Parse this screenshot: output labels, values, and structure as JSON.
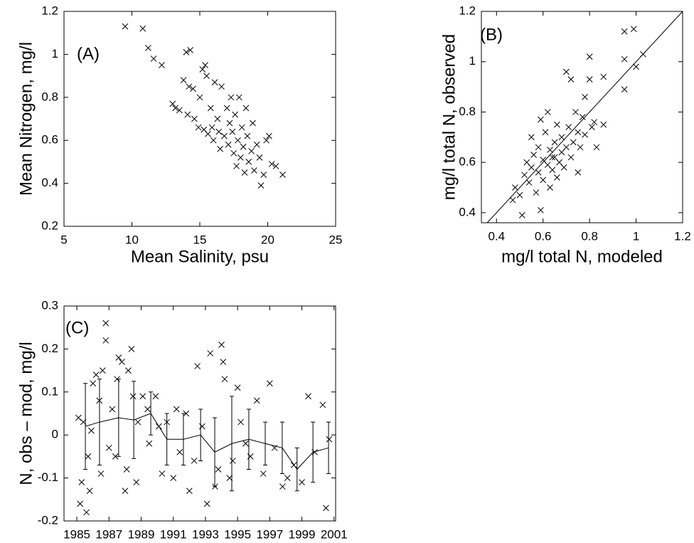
{
  "chart_data": [
    {
      "type": "scatter",
      "annotation": "(A)",
      "xlabel": "Mean Salinity, psu",
      "ylabel": "Mean Nitrogen, mg/l",
      "xlim": [
        5,
        25
      ],
      "xticks": [
        5,
        10,
        15,
        20,
        25
      ],
      "ylim": [
        0.2,
        1.2
      ],
      "yticks": [
        0.2,
        0.4,
        0.6,
        0.8,
        1,
        1.2
      ],
      "series": [
        {
          "marker": "x",
          "color": "#000000",
          "x": [
            9.5,
            10.8,
            11.2,
            11.6,
            12.2,
            13.0,
            13.2,
            13.5,
            13.8,
            14.0,
            14.3,
            14.2,
            14.5,
            14.1,
            14.6,
            14.9,
            15.0,
            15.2,
            15.4,
            15.5,
            15.3,
            15.6,
            15.8,
            16.0,
            16.1,
            16.3,
            16.5,
            16.6,
            16.8,
            17.0,
            17.1,
            17.2,
            17.3,
            17.4,
            17.5,
            17.6,
            17.8,
            17.9,
            18.0,
            18.1,
            18.2,
            18.4,
            18.5,
            18.6,
            18.8,
            18.9,
            19.0,
            19.2,
            19.4,
            19.5,
            19.7,
            19.9,
            20.1,
            20.3,
            20.6,
            21.1,
            16.4,
            17.7,
            15.9,
            18.3
          ],
          "values": [
            1.13,
            1.12,
            1.03,
            0.98,
            0.95,
            0.77,
            0.75,
            0.74,
            0.88,
            1.01,
            1.02,
            0.85,
            0.84,
            0.72,
            0.7,
            0.66,
            0.8,
            0.93,
            0.95,
            0.9,
            0.65,
            0.63,
            0.75,
            0.6,
            0.87,
            0.7,
            0.56,
            0.85,
            0.62,
            0.75,
            0.58,
            0.68,
            0.8,
            0.64,
            0.54,
            0.72,
            0.6,
            0.8,
            0.52,
            0.66,
            0.57,
            0.75,
            0.62,
            0.5,
            0.55,
            0.68,
            0.46,
            0.58,
            0.52,
            0.39,
            0.44,
            0.6,
            0.62,
            0.49,
            0.48,
            0.44,
            0.64,
            0.48,
            0.66,
            0.45
          ]
        }
      ]
    },
    {
      "type": "scatter",
      "annotation": "(B)",
      "xlabel": "mg/l total N, modeled",
      "ylabel": "mg/l total N, observed",
      "diagonal": true,
      "xlim": [
        0.335,
        1.2
      ],
      "xticks": [
        0.4,
        0.6,
        0.8,
        1,
        1.2
      ],
      "ylim": [
        0.36,
        1.2
      ],
      "yticks": [
        0.4,
        0.6,
        0.8,
        1,
        1.2
      ],
      "series": [
        {
          "marker": "x",
          "color": "#000000",
          "x": [
            0.47,
            0.48,
            0.5,
            0.51,
            0.52,
            0.53,
            0.54,
            0.55,
            0.55,
            0.56,
            0.57,
            0.58,
            0.58,
            0.59,
            0.6,
            0.6,
            0.61,
            0.62,
            0.62,
            0.63,
            0.63,
            0.64,
            0.65,
            0.65,
            0.66,
            0.66,
            0.67,
            0.68,
            0.68,
            0.69,
            0.7,
            0.7,
            0.71,
            0.72,
            0.72,
            0.73,
            0.74,
            0.75,
            0.75,
            0.76,
            0.77,
            0.78,
            0.78,
            0.8,
            0.8,
            0.81,
            0.82,
            0.83,
            0.86,
            0.86,
            0.95,
            0.99,
            0.95,
            0.95,
            1.0,
            1.03,
            0.59,
            0.64
          ],
          "values": [
            0.45,
            0.5,
            0.47,
            0.39,
            0.55,
            0.6,
            0.52,
            0.7,
            0.58,
            0.63,
            0.48,
            0.66,
            0.56,
            0.77,
            0.61,
            0.53,
            0.72,
            0.59,
            0.8,
            0.65,
            0.5,
            0.57,
            0.68,
            0.62,
            0.75,
            0.54,
            0.6,
            0.64,
            0.7,
            0.58,
            0.66,
            0.96,
            0.74,
            0.62,
            0.93,
            0.68,
            0.8,
            0.72,
            0.56,
            0.66,
            0.78,
            0.86,
            0.71,
            0.93,
            1.02,
            0.74,
            0.76,
            0.66,
            0.94,
            0.75,
            1.12,
            1.13,
            1.01,
            0.89,
            0.98,
            1.03,
            0.41,
            0.62
          ]
        }
      ]
    },
    {
      "type": "scatter",
      "annotation": "(C)",
      "ylabel": "N, obs – mod, mg/l",
      "xlim": [
        1984.2,
        2001.1
      ],
      "xticks": [
        1985,
        1987,
        1989,
        1991,
        1993,
        1995,
        1997,
        1999,
        2001
      ],
      "ylim": [
        -0.2,
        0.3
      ],
      "yticks": [
        -0.2,
        -0.1,
        0,
        0.1,
        0.2,
        0.3
      ],
      "series": [
        {
          "marker": "x",
          "color": "#000000",
          "x": [
            1985.1,
            1985.2,
            1985.3,
            1985.4,
            1985.6,
            1985.7,
            1985.8,
            1985.9,
            1986.0,
            1986.2,
            1986.4,
            1986.5,
            1986.6,
            1986.8,
            1986.8,
            1987.0,
            1987.2,
            1987.4,
            1987.5,
            1987.6,
            1987.8,
            1988.0,
            1988.1,
            1988.2,
            1988.4,
            1988.5,
            1988.7,
            1988.8,
            1989.1,
            1989.4,
            1989.5,
            1989.9,
            1990.1,
            1990.3,
            1990.6,
            1991.0,
            1991.2,
            1991.4,
            1991.8,
            1992.0,
            1992.3,
            1992.5,
            1992.8,
            1993.1,
            1993.3,
            1993.6,
            1993.8,
            1994.0,
            1994.1,
            1994.2,
            1994.5,
            1994.7,
            1995.0,
            1995.2,
            1995.5,
            1995.8,
            1996.2,
            1996.6,
            1997.0,
            1997.3,
            1997.8,
            1998.1,
            1998.5,
            1999.0,
            1999.4,
            1999.8,
            2000.3,
            2000.5,
            2000.7
          ],
          "values": [
            0.04,
            -0.16,
            -0.11,
            0.03,
            -0.18,
            -0.05,
            -0.13,
            0.01,
            0.12,
            0.14,
            0.08,
            -0.09,
            0.15,
            0.26,
            0.22,
            -0.03,
            0.06,
            -0.05,
            0.13,
            0.18,
            0.17,
            -0.13,
            -0.08,
            0.15,
            0.2,
            0.09,
            -0.11,
            0.03,
            0.09,
            0.06,
            -0.02,
            0.09,
            0.02,
            -0.09,
            0.03,
            -0.1,
            0.06,
            -0.04,
            0.05,
            -0.13,
            -0.06,
            0.16,
            0.02,
            -0.16,
            0.19,
            -0.12,
            -0.08,
            0.21,
            0.17,
            0.13,
            -0.1,
            -0.06,
            0.11,
            0.03,
            -0.02,
            -0.05,
            0.08,
            -0.09,
            0.12,
            -0.03,
            -0.12,
            -0.1,
            -0.07,
            -0.11,
            0.09,
            -0.04,
            0.07,
            -0.17,
            -0.01
          ]
        },
        {
          "marker": "line",
          "color": "#000000",
          "x": [
            1985.53,
            1986.41,
            1987.6,
            1988.54,
            1989.6,
            1990.6,
            1991.63,
            1992.7,
            1993.58,
            1994.64,
            1995.7,
            1996.72,
            1997.78,
            1998.7,
            1999.69,
            2000.66
          ],
          "values": [
            0.02,
            0.03,
            0.04,
            0.035,
            0.05,
            -0.01,
            -0.01,
            0.0,
            -0.04,
            -0.02,
            -0.01,
            -0.02,
            -0.03,
            -0.08,
            -0.04,
            -0.03
          ],
          "errors": [
            0.1,
            0.1,
            0.09,
            0.09,
            0.05,
            0.06,
            0.06,
            0.06,
            0.08,
            0.11,
            0.07,
            0.05,
            0.06,
            0.05,
            0.07,
            0.06
          ]
        }
      ]
    }
  ]
}
